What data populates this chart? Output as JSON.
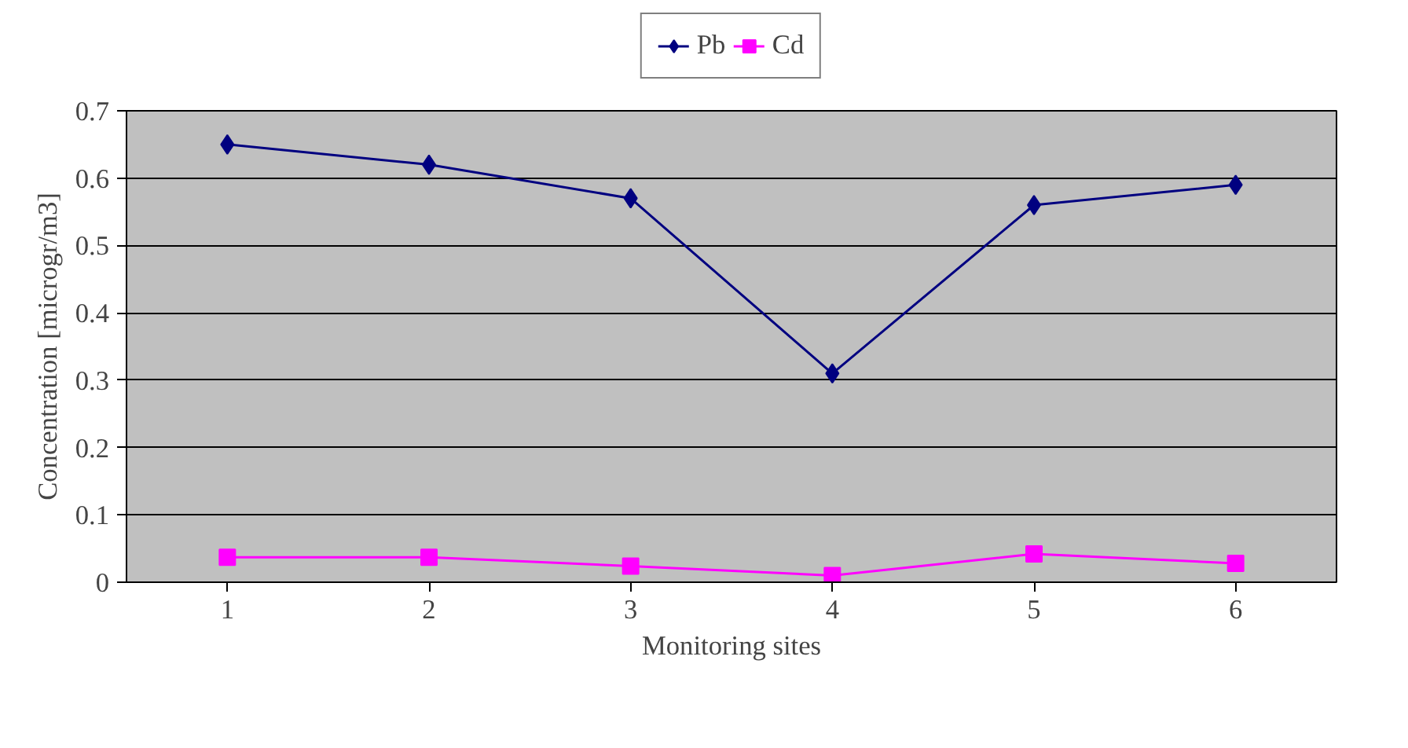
{
  "chart_data": {
    "type": "line",
    "xlabel": "Monitoring sites",
    "ylabel": "Concentration [microgr/m3]",
    "categories": [
      "1",
      "2",
      "3",
      "4",
      "5",
      "6"
    ],
    "series": [
      {
        "name": "Pb",
        "color": "#000080",
        "marker": "diamond",
        "values": [
          0.65,
          0.62,
          0.57,
          0.31,
          0.56,
          0.59
        ]
      },
      {
        "name": "Cd",
        "color": "#ff00ff",
        "marker": "square",
        "values": [
          0.037,
          0.037,
          0.024,
          0.01,
          0.042,
          0.028
        ]
      }
    ],
    "ylim": [
      0,
      0.7
    ],
    "yticks": [
      0,
      0.1,
      0.2,
      0.3,
      0.4,
      0.5,
      0.6,
      0.7
    ],
    "grid": "y",
    "legend": "top",
    "line_style": "solid"
  }
}
